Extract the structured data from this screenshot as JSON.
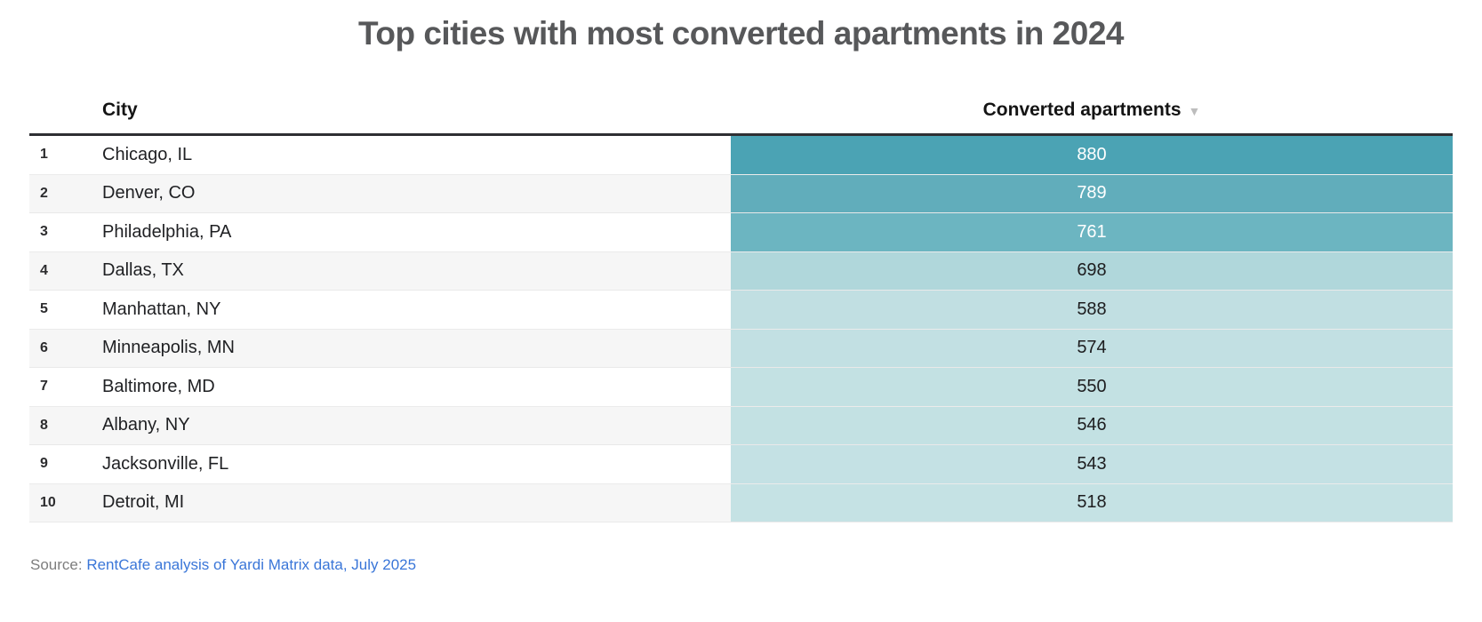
{
  "title": "Top cities with most converted apartments in 2024",
  "table": {
    "columns": {
      "city": "City",
      "value": "Converted apartments"
    },
    "sort_icon": "▼",
    "rows": [
      {
        "rank": "1",
        "city": "Chicago, IL",
        "value": "880",
        "bar_color": "#4ba3b4",
        "value_text_color": "#ffffff"
      },
      {
        "rank": "2",
        "city": "Denver, CO",
        "value": "789",
        "bar_color": "#61adbb",
        "value_text_color": "#ffffff"
      },
      {
        "rank": "3",
        "city": "Philadelphia, PA",
        "value": "761",
        "bar_color": "#6cb5c1",
        "value_text_color": "#ffffff"
      },
      {
        "rank": "4",
        "city": "Dallas, TX",
        "value": "698",
        "bar_color": "#b0d7db",
        "value_text_color": "#1d1d1f"
      },
      {
        "rank": "5",
        "city": "Manhattan, NY",
        "value": "588",
        "bar_color": "#c1dfe2",
        "value_text_color": "#1d1d1f"
      },
      {
        "rank": "6",
        "city": "Minneapolis, MN",
        "value": "574",
        "bar_color": "#c2e0e3",
        "value_text_color": "#1d1d1f"
      },
      {
        "rank": "7",
        "city": "Baltimore, MD",
        "value": "550",
        "bar_color": "#c3e1e3",
        "value_text_color": "#1d1d1f"
      },
      {
        "rank": "8",
        "city": "Albany, NY",
        "value": "546",
        "bar_color": "#c3e1e3",
        "value_text_color": "#1d1d1f"
      },
      {
        "rank": "9",
        "city": "Jacksonville, FL",
        "value": "543",
        "bar_color": "#c4e1e4",
        "value_text_color": "#1d1d1f"
      },
      {
        "rank": "10",
        "city": "Detroit, MI",
        "value": "518",
        "bar_color": "#c5e2e4",
        "value_text_color": "#1d1d1f"
      }
    ]
  },
  "source": {
    "label": "Source:",
    "link_text": "RentCafe analysis of Yardi Matrix data, July 2025"
  },
  "colors": {
    "title_text": "#57585a",
    "header_text": "#141414",
    "header_rule": "#2e2f33",
    "alt_row_bg": "#f6f6f6",
    "row_divider": "#e4e4e4",
    "sort_arrow": "#bdbdbd",
    "source_text": "#7d7d7d",
    "link_blue": "#3a76d8",
    "bar_teal_max": "#4ba3b4",
    "bar_teal_min": "#c5e2e4"
  },
  "chart_data": {
    "type": "table",
    "title": "Top cities with most converted apartments in 2024",
    "columns": [
      "",
      "City",
      "Converted apartments"
    ],
    "categories": [
      "Chicago, IL",
      "Denver, CO",
      "Philadelphia, PA",
      "Dallas, TX",
      "Manhattan, NY",
      "Minneapolis, MN",
      "Baltimore, MD",
      "Albany, NY",
      "Jacksonville, FL",
      "Detroit, MI"
    ],
    "values": [
      880,
      789,
      761,
      698,
      588,
      574,
      550,
      546,
      543,
      518
    ],
    "ranks": [
      1,
      2,
      3,
      4,
      5,
      6,
      7,
      8,
      9,
      10
    ],
    "sort": "descending by Converted apartments",
    "value_cell_shading": "teal intensity scaled to value",
    "source": "Source: RentCafe analysis of Yardi Matrix data, July 2025"
  }
}
